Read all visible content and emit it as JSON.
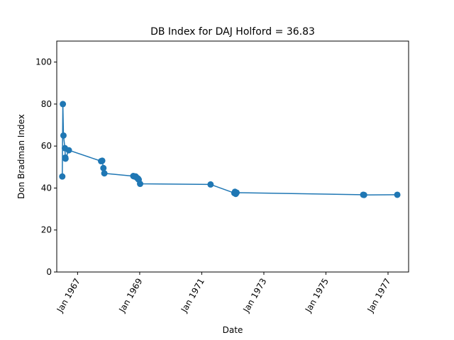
{
  "chart_data": {
    "type": "line",
    "title": "DB Index for DAJ Holford = 36.83",
    "xlabel": "Date",
    "ylabel": "Don Bradman Index",
    "ylim": [
      0,
      110
    ],
    "xlim": [
      "1966-05-01",
      "1977-08-31"
    ],
    "yticks": [
      0,
      20,
      40,
      60,
      80,
      100
    ],
    "xticks": [
      {
        "date": "1967-01-01",
        "label": "Jan 1967"
      },
      {
        "date": "1969-01-01",
        "label": "Jan 1969"
      },
      {
        "date": "1971-01-01",
        "label": "Jan 1971"
      },
      {
        "date": "1973-01-01",
        "label": "Jan 1973"
      },
      {
        "date": "1975-01-01",
        "label": "Jan 1975"
      },
      {
        "date": "1977-01-01",
        "label": "Jan 1977"
      }
    ],
    "grid": false,
    "marker": "circle",
    "color": "#1f77b4",
    "series": [
      {
        "x": [
          "1966-07-05",
          "1966-07-12",
          "1966-07-19",
          "1966-08-05",
          "1966-08-10",
          "1966-08-12",
          "1966-09-20",
          "1967-10-05",
          "1967-10-18",
          "1967-11-01",
          "1967-11-12",
          "1968-10-18",
          "1968-11-01",
          "1968-11-15",
          "1968-12-01",
          "1968-12-12",
          "1968-12-20",
          "1969-01-06",
          "1971-04-15",
          "1972-01-20",
          "1972-01-27",
          "1972-02-05",
          "1972-02-15",
          "1976-03-15",
          "1976-03-25",
          "1977-04-20"
        ],
        "y": [
          45.5,
          80.0,
          65.0,
          59.0,
          54.5,
          54.0,
          58.0,
          52.8,
          53.0,
          49.5,
          47.0,
          45.7,
          45.5,
          45.5,
          44.8,
          44.5,
          44.0,
          42.0,
          41.7,
          37.6,
          38.2,
          37.2,
          37.8,
          36.8,
          36.7,
          36.8
        ]
      }
    ]
  }
}
